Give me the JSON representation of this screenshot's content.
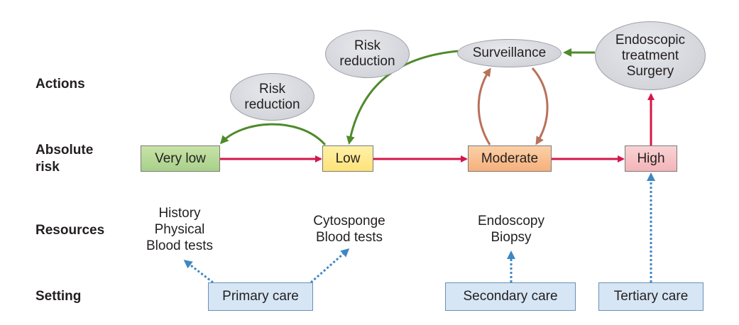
{
  "row_labels": {
    "actions": "Actions",
    "absolute_risk": "Absolute risk",
    "resources": "Resources",
    "setting": "Setting"
  },
  "risk_levels": {
    "very_low": "Very low",
    "low": "Low",
    "moderate": "Moderate",
    "high": "High"
  },
  "actions": {
    "risk_reduction_1": [
      "Risk",
      "reduction"
    ],
    "risk_reduction_2": [
      "Risk",
      "reduction"
    ],
    "surveillance": "Surveillance",
    "endoscopic": [
      "Endoscopic",
      "treatment",
      "Surgery"
    ]
  },
  "resources": {
    "primary": [
      "History",
      "Physical",
      "Blood tests"
    ],
    "cytosponge": [
      "Cytosponge",
      "Blood tests"
    ],
    "endoscopy": [
      "Endoscopy",
      "Biopsy"
    ]
  },
  "settings": {
    "primary": "Primary care",
    "secondary": "Secondary care",
    "tertiary": "Tertiary care"
  },
  "colors": {
    "progression_arrow": "#d4174a",
    "action_arrow": "#4f8a2b",
    "surveillance_loop": "#b9715a",
    "resource_arrow": "#3f86c4"
  }
}
